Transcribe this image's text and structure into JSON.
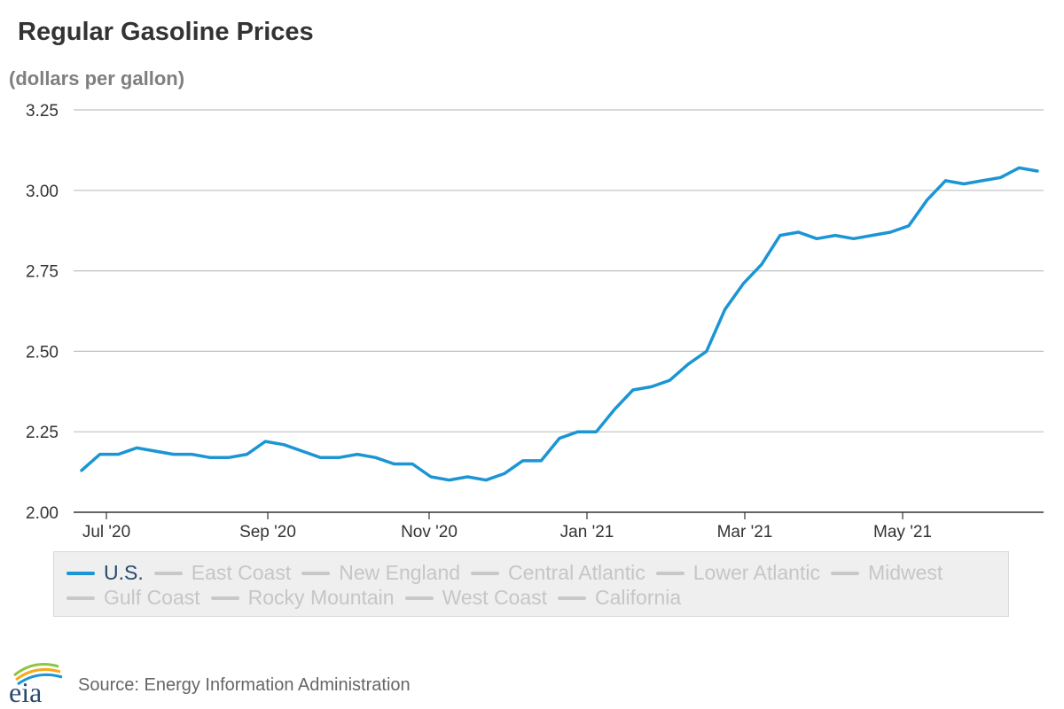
{
  "title": "Regular Gasoline Prices",
  "unit_label": "(dollars per gallon)",
  "legend": {
    "row1": [
      {
        "label": "U.S.",
        "active": true
      },
      {
        "label": "East Coast",
        "active": false
      },
      {
        "label": "New England",
        "active": false
      },
      {
        "label": "Central Atlantic",
        "active": false
      },
      {
        "label": "Lower Atlantic",
        "active": false
      },
      {
        "label": "Midwest",
        "active": false
      }
    ],
    "row2": [
      {
        "label": "Gulf Coast",
        "active": false
      },
      {
        "label": "Rocky Mountain",
        "active": false
      },
      {
        "label": "West Coast",
        "active": false
      },
      {
        "label": "California",
        "active": false
      }
    ]
  },
  "source": "Source: Energy Information Administration",
  "logo_text": "eia",
  "colors": {
    "series": "#1b95d3",
    "inactive_swatch": "#c8c8c8",
    "grid": "#c0c0c0",
    "axis": "#333333"
  },
  "chart_data": {
    "type": "line",
    "ylim": [
      2.0,
      3.25
    ],
    "yticks": [
      "2.00",
      "2.25",
      "2.50",
      "2.75",
      "3.00",
      "3.25"
    ],
    "x_ticks": [
      "Jul '20",
      "Sep '20",
      "Nov '20",
      "Jan '21",
      "Mar '21",
      "May '21"
    ],
    "grid": "horizontal",
    "legend_position": "bottom",
    "series": [
      {
        "name": "U.S.",
        "values": [
          2.13,
          2.18,
          2.18,
          2.2,
          2.19,
          2.18,
          2.18,
          2.17,
          2.17,
          2.18,
          2.22,
          2.21,
          2.19,
          2.17,
          2.17,
          2.18,
          2.17,
          2.15,
          2.15,
          2.11,
          2.1,
          2.11,
          2.1,
          2.12,
          2.16,
          2.16,
          2.23,
          2.25,
          2.25,
          2.32,
          2.38,
          2.39,
          2.41,
          2.46,
          2.5,
          2.63,
          2.71,
          2.77,
          2.86,
          2.87,
          2.85,
          2.86,
          2.85,
          2.86,
          2.87,
          2.89,
          2.97,
          3.03,
          3.02,
          3.03,
          3.04,
          3.07,
          3.06
        ]
      }
    ]
  }
}
